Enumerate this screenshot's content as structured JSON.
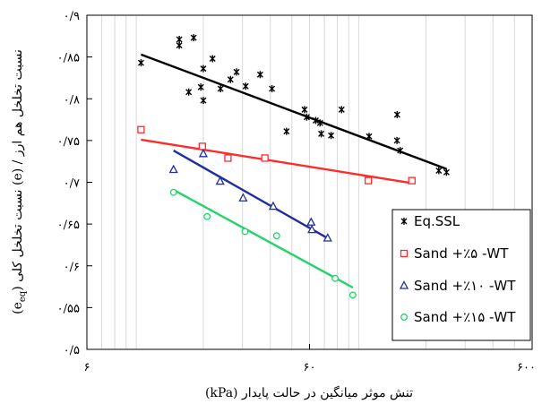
{
  "chart_data": {
    "type": "scatter",
    "title": "",
    "xlabel": "تنش موثر میانگین در حالت پایدار (kPa)",
    "ylabel_lead": "(e",
    "ylabel_sub": "eq",
    "ylabel_tail": ") نسبت تخلخل کلی (e) / نسبت تخلخل هم ارز",
    "x_scale": "log",
    "xlim": [
      6,
      600
    ],
    "ylim": [
      0.5,
      0.9
    ],
    "grid": "vertical minor",
    "x_ticks": [
      {
        "value": 6,
        "label": "۶"
      },
      {
        "value": 60,
        "label": "۶۰"
      },
      {
        "value": 600,
        "label": "۶۰۰"
      }
    ],
    "y_ticks": [
      {
        "value": 0.5,
        "label": "۰/۵"
      },
      {
        "value": 0.55,
        "label": "۰/۵۵"
      },
      {
        "value": 0.6,
        "label": "۰/۶"
      },
      {
        "value": 0.65,
        "label": "۰/۶۵"
      },
      {
        "value": 0.7,
        "label": "۰/۷"
      },
      {
        "value": 0.75,
        "label": "۰/۷۵"
      },
      {
        "value": 0.8,
        "label": "۰/۸"
      },
      {
        "value": 0.85,
        "label": "۰/۸۵"
      },
      {
        "value": 0.9,
        "label": "۰/۹"
      }
    ],
    "legend_position": "bottom-right",
    "series": [
      {
        "name": "Eq.SSL",
        "marker": "star",
        "color": "#000000",
        "points": [
          [
            10.5,
            0.843
          ],
          [
            15.6,
            0.871
          ],
          [
            15.6,
            0.864
          ],
          [
            18.1,
            0.873
          ],
          [
            20.0,
            0.836
          ],
          [
            22.0,
            0.848
          ],
          [
            19.5,
            0.814
          ],
          [
            17.2,
            0.808
          ],
          [
            20.0,
            0.798
          ],
          [
            23.9,
            0.812
          ],
          [
            26.5,
            0.823
          ],
          [
            31.0,
            0.815
          ],
          [
            28.2,
            0.832
          ],
          [
            36.0,
            0.829
          ],
          [
            40.7,
            0.812
          ],
          [
            57.0,
            0.787
          ],
          [
            58.3,
            0.778
          ],
          [
            64.0,
            0.774
          ],
          [
            66.9,
            0.771
          ],
          [
            47.3,
            0.761
          ],
          [
            83.6,
            0.787
          ],
          [
            75.0,
            0.756
          ],
          [
            67.7,
            0.758
          ],
          [
            148.5,
            0.781
          ],
          [
            148.2,
            0.75
          ],
          [
            111.1,
            0.755
          ],
          [
            153.3,
            0.738
          ],
          [
            247.5,
            0.712
          ],
          [
            228.5,
            0.714
          ]
        ],
        "fit": [
          [
            10.5,
            0.853
          ],
          [
            247.5,
            0.716
          ]
        ]
      },
      {
        "name": "Sand +٪۵ -WT",
        "marker": "square",
        "color": "#ff2a2a",
        "points": [
          [
            10.5,
            0.763
          ],
          [
            19.8,
            0.743
          ],
          [
            25.8,
            0.729
          ],
          [
            37.8,
            0.729
          ],
          [
            110.2,
            0.702
          ],
          [
            173.0,
            0.702
          ]
        ],
        "fit": [
          [
            10.5,
            0.751
          ],
          [
            173.0,
            0.699
          ]
        ]
      },
      {
        "name": "Sand +٪۱۰ -WT",
        "marker": "triangle",
        "color": "#1f2fa0",
        "points": [
          [
            14.7,
            0.715
          ],
          [
            20.0,
            0.734
          ],
          [
            23.8,
            0.701
          ],
          [
            30.2,
            0.681
          ],
          [
            41.2,
            0.671
          ],
          [
            61.0,
            0.652
          ],
          [
            61.5,
            0.643
          ],
          [
            72.4,
            0.633
          ]
        ],
        "fit": [
          [
            14.7,
            0.738
          ],
          [
            72.4,
            0.633
          ]
        ]
      },
      {
        "name": "Sand +٪۱۵ -WT",
        "marker": "circle",
        "color": "#22d36a",
        "points": [
          [
            14.7,
            0.688
          ],
          [
            20.8,
            0.659
          ],
          [
            30.8,
            0.641
          ],
          [
            42.7,
            0.636
          ],
          [
            78.2,
            0.585
          ],
          [
            93.9,
            0.565
          ]
        ],
        "fit": [
          [
            14.7,
            0.691
          ],
          [
            93.9,
            0.574
          ]
        ]
      }
    ]
  }
}
